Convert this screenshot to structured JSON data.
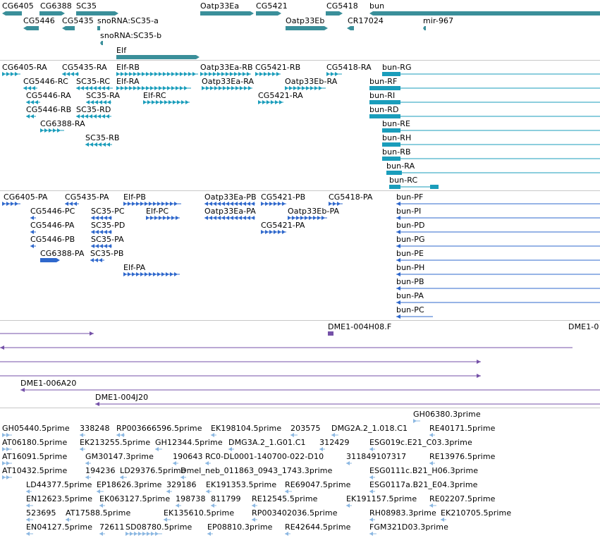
{
  "colors": {
    "gene": "#3a8f9a",
    "mrna": "#1a9dbb",
    "protein": "#2f68cc",
    "cdna": "#7551a8",
    "est": "#8cb8e2",
    "divider": "#c8c8c8"
  },
  "tracks": {
    "genes": {
      "labels": [
        "CG6405",
        "CG6388",
        "SC35",
        "Oatp33Ea",
        "CG5421",
        "CG5418",
        "bun",
        "CG5446",
        "CG5435",
        "snoRNA:SC35-a",
        "Oatp33Eb",
        "CR17024",
        "mir-967",
        "snoRNA:SC35-b",
        "Elf"
      ]
    },
    "transcripts": {
      "labels": [
        "CG6405-RA",
        "CG5435-RA",
        "Elf-RB",
        "Oatp33Ea-RB",
        "CG5421-RB",
        "CG5418-RA",
        "bun-RG",
        "CG5446-RC",
        "SC35-RC",
        "Elf-RA",
        "Oatp33Ea-RA",
        "Oatp33Eb-RA",
        "bun-RF",
        "CG5446-RA",
        "SC35-RA",
        "Elf-RC",
        "CG5421-RA",
        "bun-RI",
        "CG5446-RB",
        "SC35-RD",
        "bun-RD",
        "CG6388-RA",
        "bun-RE",
        "bun-RH",
        "SC35-RB",
        "bun-RB",
        "bun-RA",
        "bun-RC"
      ]
    },
    "proteins": {
      "labels": [
        "CG6405-PA",
        "CG5435-PA",
        "Elf-PB",
        "Oatp33Ea-PB",
        "CG5421-PB",
        "CG5418-PA",
        "bun-PF",
        "CG5446-PC",
        "SC35-PC",
        "Elf-PC",
        "Oatp33Ea-PA",
        "Oatp33Eb-PA",
        "bun-PI",
        "CG5446-PA",
        "SC35-PD",
        "CG5421-PA",
        "bun-PD",
        "CG5446-PB",
        "SC35-PA",
        "bun-PG",
        "CG6388-PA",
        "SC35-PB",
        "bun-PE",
        "Elf-PA",
        "bun-PH",
        "bun-PB",
        "bun-PA",
        "bun-PC"
      ]
    },
    "cdna": {
      "labels": [
        "DME1-004H08.F",
        "DME1-0",
        "DME1-006A20",
        "DME1-004J20"
      ]
    },
    "est": {
      "labels": [
        "GH06380.3prime",
        "GH05440.5prime",
        "338248",
        "RP003666596.5prime",
        "EK198104.5prime",
        "203575",
        "DMG2A.2_1.018.C1",
        "RE40171.5prime",
        "AT06180.5prime",
        "EK213255.5prime",
        "GH12344.5prime",
        "DMG3A.2_1.G01.C1",
        "312429",
        "ESG019c.E21_C03.3prime",
        "GM30147.3prime",
        "190643",
        "RC0-DL0001-140700-022-D10",
        "311849107317",
        "RE13976.5prime",
        "AT16091.5prime",
        "AT10432.5prime",
        "194236",
        "LD29376.5prime",
        "Dmel_neb_011863_0943_1743.3prime",
        "ESG0111c.B21_H06.3prime",
        "LD44377.5prime",
        "EP18626.3prime",
        "329186",
        "EK191353.5prime",
        "RE69047.5prime",
        "ESG0117a.B21_E04.3prime",
        "EN12623.5prime",
        "EK063127.5prime",
        "198738",
        "811799",
        "RE12545.5prime",
        "EK191157.5prime",
        "RE02207.5prime",
        "523695",
        "AT17588.5prime",
        "EK135610.5prime",
        "RP003402036.5prime",
        "RH08983.3prime",
        "EK210705.5prime",
        "EN04127.5prime",
        "72611",
        "SD08780.5prime",
        "EP08810.3prime",
        "RE42644.5prime",
        "FGM321D03.3prime"
      ]
    }
  }
}
